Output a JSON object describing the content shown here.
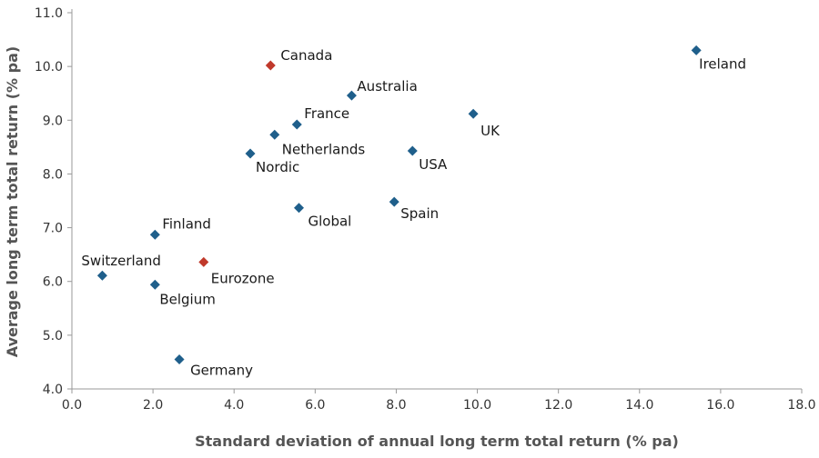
{
  "chart_data": {
    "type": "scatter",
    "title": "",
    "xlabel": "Standard deviation of annual long term total return (% pa)",
    "ylabel": "Average long term total return (% pa)",
    "xlim": [
      0,
      18
    ],
    "ylim": [
      4,
      11
    ],
    "x_ticks": [
      "0.0",
      "2.0",
      "4.0",
      "6.0",
      "8.0",
      "10.0",
      "12.0",
      "14.0",
      "16.0",
      "18.0"
    ],
    "y_ticks": [
      "4.0",
      "5.0",
      "6.0",
      "7.0",
      "8.0",
      "9.0",
      "10.0",
      "11.0"
    ],
    "grid": false,
    "colors": {
      "default": "#1f5f8b",
      "highlight": "#c0392b"
    },
    "points": [
      {
        "label": "Canada",
        "x": 4.9,
        "y": 10.02,
        "highlight": true
      },
      {
        "label": "Ireland",
        "x": 15.4,
        "y": 10.3,
        "highlight": false
      },
      {
        "label": "Australia",
        "x": 6.9,
        "y": 9.46,
        "highlight": false
      },
      {
        "label": "France",
        "x": 5.55,
        "y": 8.92,
        "highlight": false
      },
      {
        "label": "UK",
        "x": 9.9,
        "y": 9.12,
        "highlight": false
      },
      {
        "label": "Netherlands",
        "x": 5.0,
        "y": 8.73,
        "highlight": false
      },
      {
        "label": "Nordic",
        "x": 4.4,
        "y": 8.38,
        "highlight": false
      },
      {
        "label": "USA",
        "x": 8.4,
        "y": 8.43,
        "highlight": false
      },
      {
        "label": "Spain",
        "x": 7.95,
        "y": 7.48,
        "highlight": false
      },
      {
        "label": "Global",
        "x": 5.6,
        "y": 7.37,
        "highlight": false
      },
      {
        "label": "Finland",
        "x": 2.05,
        "y": 6.87,
        "highlight": false
      },
      {
        "label": "Switzerland",
        "x": 0.75,
        "y": 6.11,
        "highlight": false
      },
      {
        "label": "Eurozone",
        "x": 3.25,
        "y": 6.36,
        "highlight": true
      },
      {
        "label": "Belgium",
        "x": 2.05,
        "y": 5.94,
        "highlight": false
      },
      {
        "label": "Germany",
        "x": 2.65,
        "y": 4.55,
        "highlight": false
      }
    ]
  }
}
